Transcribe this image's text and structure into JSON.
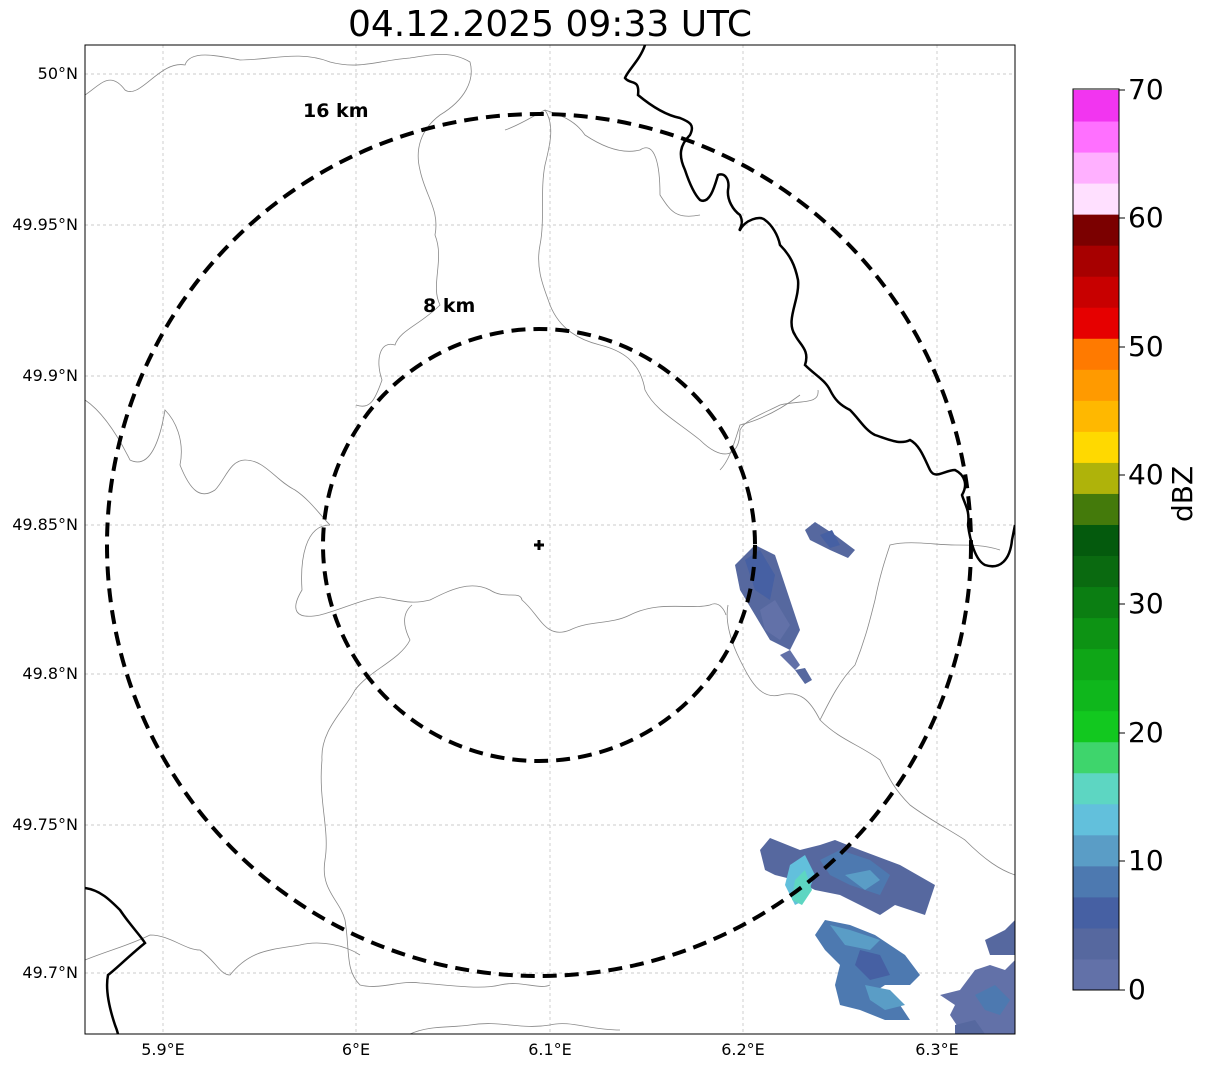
{
  "title": "04.12.2025 09:33 UTC",
  "axes": {
    "lat_ticks": [
      "50°N",
      "49.95°N",
      "49.9°N",
      "49.85°N",
      "49.8°N",
      "49.75°N",
      "49.7°N"
    ],
    "lon_ticks": [
      "5.9°E",
      "6°E",
      "6.1°E",
      "6.2°E",
      "6.3°E"
    ],
    "grid": true
  },
  "range_rings": [
    {
      "label": "8 km",
      "radius_km": 8
    },
    {
      "label": "16 km",
      "radius_km": 16
    }
  ],
  "radar_site": {
    "marker": "plus-icon"
  },
  "colorbar": {
    "label": "dBZ",
    "ticks": [
      "0",
      "10",
      "20",
      "30",
      "40",
      "50",
      "60",
      "70"
    ],
    "colors": [
      "#6271a8",
      "#56689f",
      "#4660a3",
      "#4d79b0",
      "#5a9dc6",
      "#62c0dc",
      "#5dd6c2",
      "#3ed56c",
      "#12c81f",
      "#0fb71c",
      "#0fa617",
      "#0d9314",
      "#0b7e12",
      "#0a6a10",
      "#045a0d",
      "#447a0b",
      "#afb30a",
      "#ffd900",
      "#ffb800",
      "#ff9a00",
      "#ff7a00",
      "#e60000",
      "#c80000",
      "#a70000",
      "#7b0000",
      "#ffe0ff",
      "#ffb0ff",
      "#ff70ff",
      "#f235f0"
    ]
  },
  "colors": {
    "rings": "#000000",
    "borders": "#000000",
    "outlines": "#888888",
    "grid": "#bbbbbb"
  }
}
